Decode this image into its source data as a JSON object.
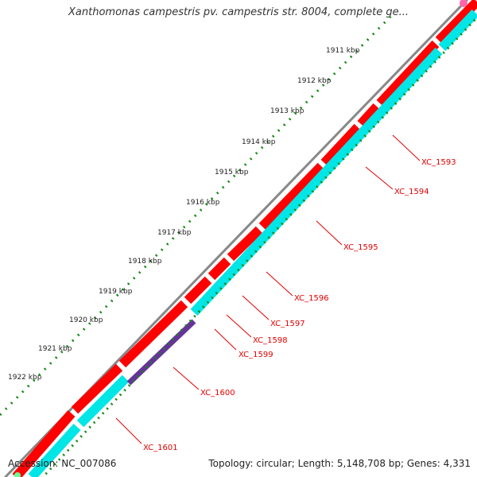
{
  "title": "Xanthomonas campestris pv. campestris str. 8004, complete ge...",
  "footer": {
    "accession": "Accession: NC_007086",
    "summary": "Topology: circular; Length: 5,148,708 bp; Genes: 4,331"
  },
  "ruler_labels": [
    "1911 kbp",
    "1912 kbp",
    "1913 kbp",
    "1914 kbp",
    "1915 kbp",
    "1916 kbp",
    "1917 kbp",
    "1918 kbp",
    "1919 kbp",
    "1920 kbp",
    "1921 kbp",
    "1922 kbp"
  ],
  "gene_labels": [
    "XC_1593",
    "XC_1594",
    "XC_1595",
    "XC_1596",
    "XC_1597",
    "XC_1598",
    "XC_1599",
    "XC_1600",
    "XC_1601"
  ],
  "colors": {
    "forward_cds": "#ff0000",
    "reverse_cds": "#00e5e5",
    "highlight_gene": "#663399",
    "backbone": "#888888",
    "tick_marks": "#118811",
    "gene_label": "#e00000"
  }
}
